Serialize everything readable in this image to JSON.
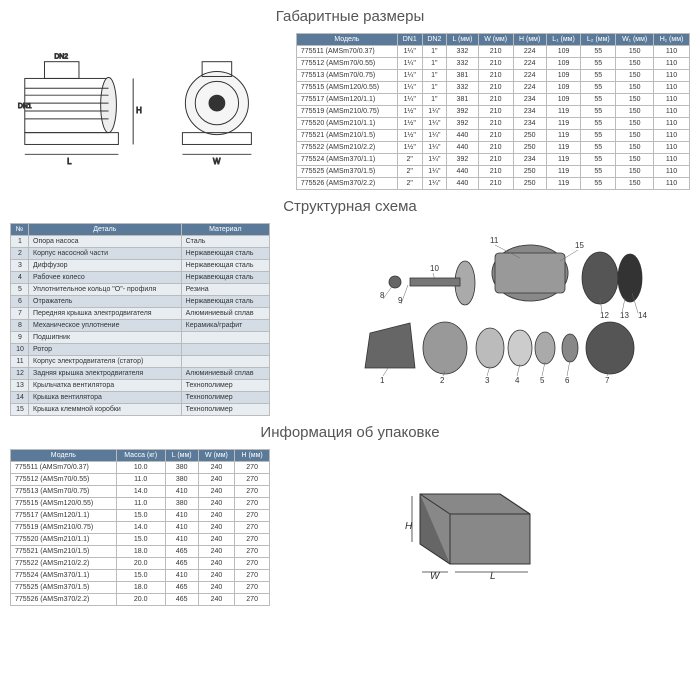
{
  "titles": {
    "dims": "Габаритные размеры",
    "struct": "Структурная схема",
    "pack": "Информация об упаковке"
  },
  "dims": {
    "headers": [
      "Модель",
      "DN1",
      "DN2",
      "L (мм)",
      "W (мм)",
      "H (мм)",
      "L₁ (мм)",
      "L₂ (мм)",
      "W₁ (мм)",
      "H₁ (мм)"
    ],
    "rows": [
      [
        "775511 (AMSm70/0.37)",
        "1¼\"",
        "1\"",
        "332",
        "210",
        "224",
        "109",
        "55",
        "150",
        "110"
      ],
      [
        "775512 (AMSm70/0.55)",
        "1¼\"",
        "1\"",
        "332",
        "210",
        "224",
        "109",
        "55",
        "150",
        "110"
      ],
      [
        "775513 (AMSm70/0.75)",
        "1¼\"",
        "1\"",
        "381",
        "210",
        "224",
        "109",
        "55",
        "150",
        "110"
      ],
      [
        "775515 (AMSm120/0.55)",
        "1¼\"",
        "1\"",
        "332",
        "210",
        "224",
        "109",
        "55",
        "150",
        "110"
      ],
      [
        "775517 (AMSm120/1.1)",
        "1¼\"",
        "1\"",
        "381",
        "210",
        "234",
        "109",
        "55",
        "150",
        "110"
      ],
      [
        "775519 (AMSm210/0.75)",
        "1½\"",
        "1¼\"",
        "392",
        "210",
        "234",
        "119",
        "55",
        "150",
        "110"
      ],
      [
        "775520 (AMSm210/1.1)",
        "1½\"",
        "1¼\"",
        "392",
        "210",
        "234",
        "119",
        "55",
        "150",
        "110"
      ],
      [
        "775521 (AMSm210/1.5)",
        "1½\"",
        "1¼\"",
        "440",
        "210",
        "250",
        "119",
        "55",
        "150",
        "110"
      ],
      [
        "775522 (AMSm210/2.2)",
        "1½\"",
        "1¼\"",
        "440",
        "210",
        "250",
        "119",
        "55",
        "150",
        "110"
      ],
      [
        "775524 (AMSm370/1.1)",
        "2\"",
        "1¼\"",
        "392",
        "210",
        "234",
        "119",
        "55",
        "150",
        "110"
      ],
      [
        "775525 (AMSm370/1.5)",
        "2\"",
        "1¼\"",
        "440",
        "210",
        "250",
        "119",
        "55",
        "150",
        "110"
      ],
      [
        "775526 (AMSm370/2.2)",
        "2\"",
        "1¼\"",
        "440",
        "210",
        "250",
        "119",
        "55",
        "150",
        "110"
      ]
    ]
  },
  "parts": {
    "headers": [
      "№",
      "Деталь",
      "Материал"
    ],
    "rows": [
      [
        "1",
        "Опора насоса",
        "Сталь"
      ],
      [
        "2",
        "Корпус насосной части",
        "Нержавеющая сталь"
      ],
      [
        "3",
        "Диффузор",
        "Нержавеющая сталь"
      ],
      [
        "4",
        "Рабочее колесо",
        "Нержавеющая сталь"
      ],
      [
        "5",
        "Уплотнительное кольцо \"O\"- профиля",
        "Резина"
      ],
      [
        "6",
        "Отражатель",
        "Нержавеющая сталь"
      ],
      [
        "7",
        "Передняя крышка электродвигателя",
        "Алюминиевый сплав"
      ],
      [
        "8",
        "Механическое уплотнение",
        "Керамика/графит"
      ],
      [
        "9",
        "Подшипник",
        ""
      ],
      [
        "10",
        "Ротор",
        ""
      ],
      [
        "11",
        "Корпус электродвигателя (статор)",
        ""
      ],
      [
        "12",
        "Задняя крышка электродвигателя",
        "Алюминиевый сплав"
      ],
      [
        "13",
        "Крыльчатка вентилятора",
        "Технополимер"
      ],
      [
        "14",
        "Крышка вентилятора",
        "Технополимер"
      ],
      [
        "15",
        "Крышка клеммной коробки",
        "Технополимер"
      ]
    ]
  },
  "pack": {
    "headers": [
      "Модель",
      "Масса (кг)",
      "L (мм)",
      "W (мм)",
      "H (мм)"
    ],
    "rows": [
      [
        "775511 (AMSm70/0.37)",
        "10.0",
        "380",
        "240",
        "270"
      ],
      [
        "775512 (AMSm70/0.55)",
        "11.0",
        "380",
        "240",
        "270"
      ],
      [
        "775513 (AMSm70/0.75)",
        "14.0",
        "410",
        "240",
        "270"
      ],
      [
        "775515 (AMSm120/0.55)",
        "11.0",
        "380",
        "240",
        "270"
      ],
      [
        "775517 (AMSm120/1.1)",
        "15.0",
        "410",
        "240",
        "270"
      ],
      [
        "775519 (AMSm210/0.75)",
        "14.0",
        "410",
        "240",
        "270"
      ],
      [
        "775520 (AMSm210/1.1)",
        "15.0",
        "410",
        "240",
        "270"
      ],
      [
        "775521 (AMSm210/1.5)",
        "18.0",
        "465",
        "240",
        "270"
      ],
      [
        "775522 (AMSm210/2.2)",
        "20.0",
        "465",
        "240",
        "270"
      ],
      [
        "775524 (AMSm370/1.1)",
        "15.0",
        "410",
        "240",
        "270"
      ],
      [
        "775525 (AMSm370/1.5)",
        "18.0",
        "465",
        "240",
        "270"
      ],
      [
        "775526 (AMSm370/2.2)",
        "20.0",
        "465",
        "240",
        "270"
      ]
    ]
  },
  "colors": {
    "header_bg": "#5b7a99",
    "row_odd": "#d4dde6",
    "row_even": "#e8edf2"
  }
}
